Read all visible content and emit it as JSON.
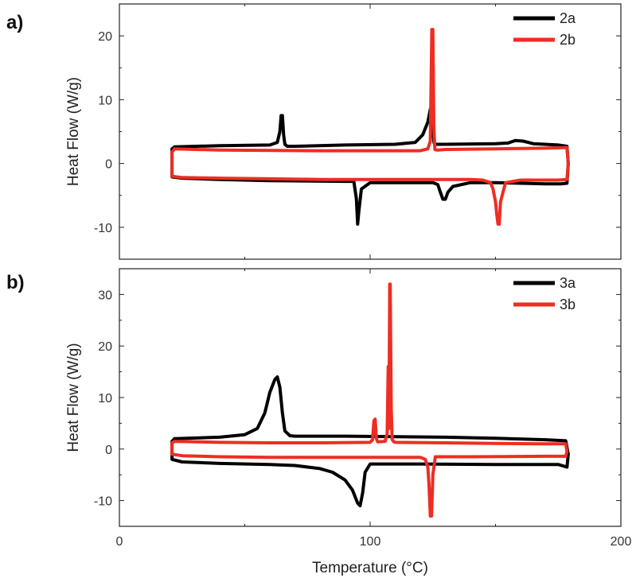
{
  "chart_data": [
    {
      "type": "line",
      "panel_label": "a)",
      "ylabel": "Heat Flow (W/g)",
      "xlim": [
        0,
        200
      ],
      "ylim": [
        -15,
        25
      ],
      "y_ticks": [
        -10,
        0,
        10,
        20
      ],
      "y_tick_labels": [
        "-10",
        "0",
        "10",
        "20"
      ],
      "grid": false,
      "legend_position": "top-right",
      "series": [
        {
          "name": "2a",
          "color": "#000000",
          "x": [
            22,
            40,
            60,
            63,
            64,
            64.5,
            65,
            65.5,
            66,
            67,
            70,
            90,
            110,
            118,
            121,
            123,
            124,
            124.5,
            125,
            125.5,
            126,
            127,
            130,
            150,
            155,
            158,
            161,
            165,
            175,
            178.5,
            179,
            178.5,
            176,
            170,
            150,
            140,
            133,
            131,
            130,
            129,
            128,
            127,
            125,
            120,
            110,
            100,
            96.5,
            95.5,
            95,
            94.5,
            93.5,
            90,
            60,
            40,
            25,
            21,
            21,
            22
          ],
          "y": [
            2.6,
            2.8,
            2.9,
            3.3,
            5.0,
            7.5,
            7.5,
            4.5,
            3.0,
            2.7,
            2.7,
            2.9,
            3.0,
            3.3,
            4.5,
            6.5,
            8.5,
            8.5,
            5.0,
            3.2,
            3.0,
            3.0,
            3.0,
            3.1,
            3.2,
            3.6,
            3.5,
            3.1,
            2.9,
            2.7,
            0.0,
            -3.1,
            -3.2,
            -3.2,
            -3.0,
            -3.0,
            -3.6,
            -4.5,
            -5.6,
            -5.6,
            -4.5,
            -3.3,
            -3.0,
            -3.0,
            -3.0,
            -3.0,
            -4.0,
            -7.5,
            -9.5,
            -5.5,
            -2.8,
            -2.8,
            -2.7,
            -2.5,
            -2.3,
            -2.1,
            2.3,
            2.6
          ]
        },
        {
          "name": "2b",
          "color": "#ee2d24",
          "x": [
            22,
            40,
            80,
            100,
            120,
            123,
            124,
            124.6,
            125,
            125.4,
            125.8,
            126.5,
            127,
            130,
            150,
            170,
            178.5,
            179,
            178.5,
            175,
            160,
            154,
            152,
            151.5,
            151,
            150.5,
            150,
            149,
            148,
            145,
            140,
            120,
            100,
            95,
            80,
            60,
            40,
            25,
            21,
            21,
            22
          ],
          "y": [
            2.3,
            2.1,
            2.0,
            2.0,
            2.0,
            2.3,
            3.5,
            21.0,
            21.0,
            6.0,
            2.2,
            2.1,
            2.1,
            2.2,
            2.3,
            2.4,
            2.5,
            0.0,
            -2.5,
            -2.6,
            -2.6,
            -3.0,
            -6.0,
            -9.5,
            -9.5,
            -8.0,
            -6.0,
            -4.0,
            -3.0,
            -2.6,
            -2.5,
            -2.5,
            -2.5,
            -2.5,
            -2.5,
            -2.4,
            -2.3,
            -2.2,
            -2.0,
            1.8,
            2.3
          ]
        }
      ]
    },
    {
      "type": "line",
      "panel_label": "b)",
      "ylabel": "Heat Flow (W/g)",
      "xlabel": "Temperature (°C)",
      "xlim": [
        0,
        200
      ],
      "ylim": [
        -15,
        35
      ],
      "x_ticks": [
        0,
        100,
        200
      ],
      "x_tick_labels": [
        "0",
        "100",
        "200"
      ],
      "y_ticks": [
        -10,
        0,
        10,
        20,
        30
      ],
      "y_tick_labels": [
        "-10",
        "0",
        "10",
        "20",
        "30"
      ],
      "grid": false,
      "legend_position": "top-right",
      "series": [
        {
          "name": "3a",
          "color": "#000000",
          "x": [
            22,
            40,
            50,
            55,
            58,
            60,
            62,
            63,
            64,
            65,
            66,
            68,
            70,
            90,
            110,
            130,
            150,
            170,
            178,
            179,
            178.5,
            175,
            150,
            120,
            100,
            98,
            97,
            96,
            95,
            93,
            90,
            85,
            80,
            70,
            60,
            40,
            25,
            21,
            21,
            22
          ],
          "y": [
            2.0,
            2.3,
            2.8,
            4.0,
            7.0,
            11.0,
            13.5,
            14.0,
            12.0,
            7.0,
            3.5,
            2.6,
            2.5,
            2.5,
            2.4,
            2.3,
            2.1,
            1.8,
            1.6,
            -1.0,
            -3.5,
            -3.0,
            -3.0,
            -2.9,
            -2.9,
            -4.5,
            -8.5,
            -11.0,
            -10.5,
            -8.0,
            -6.0,
            -4.5,
            -3.8,
            -3.2,
            -3.0,
            -2.8,
            -2.5,
            -2.0,
            1.5,
            2.0
          ]
        },
        {
          "name": "3b",
          "color": "#ee2d24",
          "x": [
            22,
            40,
            60,
            80,
            100,
            101,
            101.5,
            102,
            102.5,
            103,
            106,
            106.8,
            107.2,
            107.5,
            107.8,
            108,
            108.4,
            108.8,
            109.5,
            110,
            130,
            150,
            170,
            178,
            178.5,
            178,
            170,
            140,
            126,
            125,
            124.5,
            124,
            123.5,
            123,
            122,
            120,
            110,
            100,
            80,
            60,
            40,
            25,
            21,
            21,
            22
          ],
          "y": [
            1.5,
            1.3,
            1.2,
            1.2,
            1.3,
            1.8,
            5.5,
            5.8,
            2.0,
            1.4,
            1.5,
            3.0,
            16.0,
            4.0,
            32.0,
            32.0,
            8.0,
            1.8,
            1.4,
            1.3,
            1.2,
            1.1,
            1.0,
            1.0,
            -0.5,
            -1.4,
            -1.4,
            -1.5,
            -1.5,
            -5.0,
            -13.0,
            -13.0,
            -7.0,
            -3.5,
            -2.0,
            -1.6,
            -1.6,
            -1.6,
            -1.6,
            -1.6,
            -1.5,
            -1.3,
            -1.0,
            1.2,
            1.5
          ]
        }
      ]
    }
  ]
}
